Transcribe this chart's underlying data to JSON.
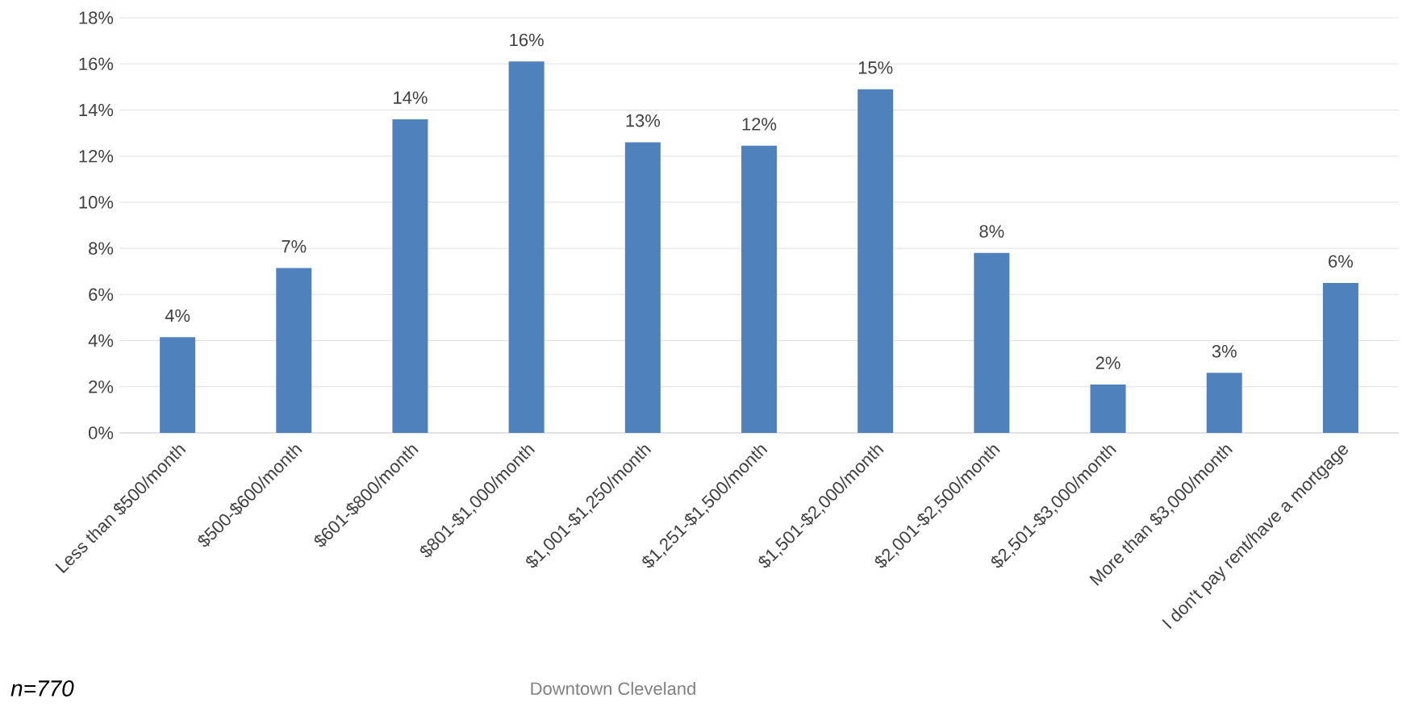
{
  "chart_data": {
    "type": "bar",
    "xlabel": "Downtown Cleveland",
    "annotations": [
      "n=770"
    ],
    "categories": [
      "Less than $500/month",
      "$500-$600/month",
      "$601-$800/month",
      "$801-$1,000/month",
      "$1,001-$1,250/month",
      "$1,251-$1,500/month",
      "$1,501-$2,000/month",
      "$2,001-$2,500/month",
      "$2,501-$3,000/month",
      "More than $3,000/month",
      "I don't pay rent/have a mortgage"
    ],
    "values": [
      4.15,
      7.15,
      13.6,
      16.1,
      12.6,
      12.45,
      14.9,
      7.8,
      2.1,
      2.6,
      6.5
    ],
    "value_labels": [
      "4%",
      "7%",
      "14%",
      "16%",
      "13%",
      "12%",
      "15%",
      "8%",
      "2%",
      "3%",
      "6%"
    ],
    "color": "#4f81bd",
    "ylim": [
      0,
      18
    ],
    "yticks": [
      {
        "value": 0,
        "label": "0%"
      },
      {
        "value": 2,
        "label": "2%"
      },
      {
        "value": 4,
        "label": "4%"
      },
      {
        "value": 6,
        "label": "6%"
      },
      {
        "value": 8,
        "label": "8%"
      },
      {
        "value": 10,
        "label": "10%"
      },
      {
        "value": 12,
        "label": "12%"
      },
      {
        "value": 14,
        "label": "14%"
      },
      {
        "value": 16,
        "label": "16%"
      },
      {
        "value": 18,
        "label": "18%"
      }
    ],
    "grid": "y"
  }
}
